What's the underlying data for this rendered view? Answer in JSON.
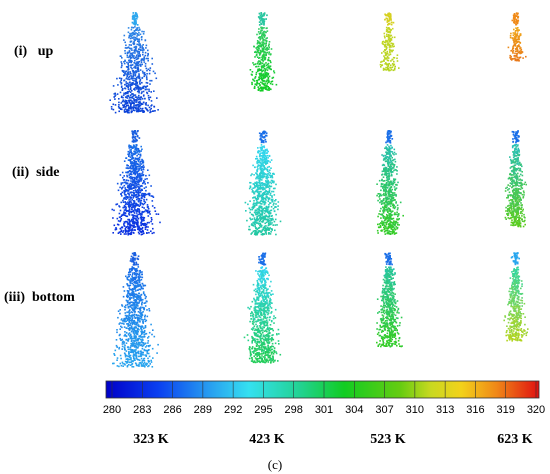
{
  "row_labels": {
    "up": {
      "index": "(i)",
      "word": "up"
    },
    "side": {
      "index": "(ii)",
      "word": "side"
    },
    "bottom": {
      "index": "(iii)",
      "word": "bottom"
    }
  },
  "columns": [
    "323 K",
    "423 K",
    "523 K",
    "623 K"
  ],
  "colorbar": {
    "ticks": [
      "280",
      "283",
      "286",
      "289",
      "292",
      "295",
      "298",
      "301",
      "304",
      "307",
      "310",
      "313",
      "316",
      "319",
      "320"
    ],
    "colors": [
      "#0011cc",
      "#0033ee",
      "#1a6fe8",
      "#29a6ee",
      "#33d6f0",
      "#22c7a0",
      "#11cc33",
      "#33cc11",
      "#7acc11",
      "#c6d62a",
      "#eed922",
      "#f0a818",
      "#ee6a18",
      "#e83a18",
      "#cc0000"
    ]
  },
  "caption": "(c)"
}
